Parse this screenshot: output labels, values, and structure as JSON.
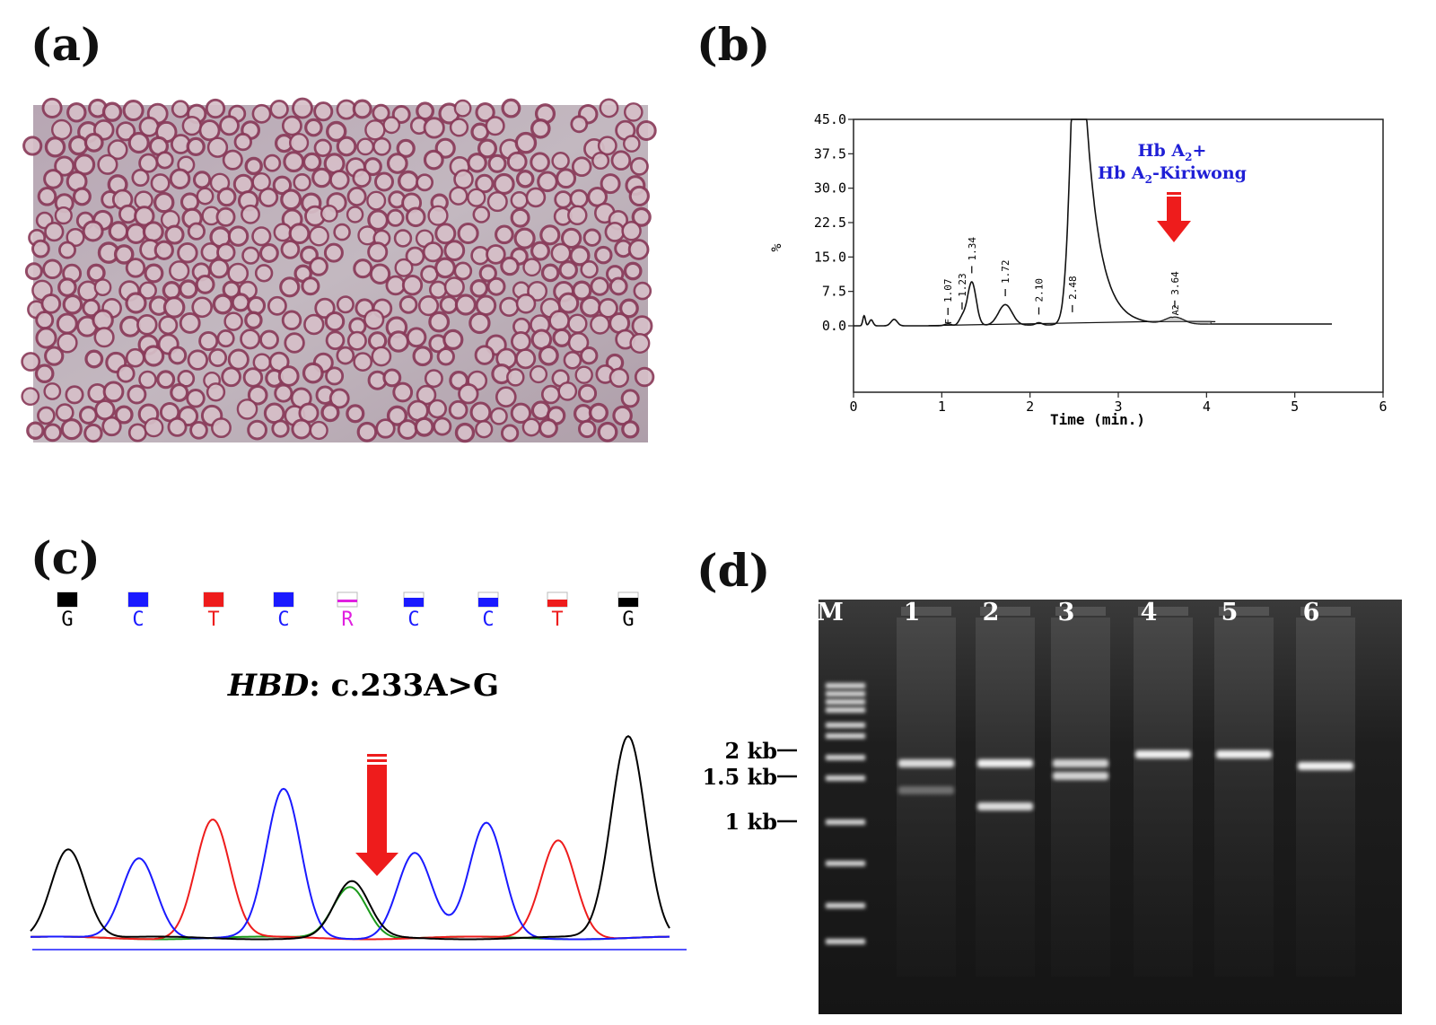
{
  "panels": {
    "a": {
      "label": "(a)"
    },
    "b": {
      "label": "(b)"
    },
    "c": {
      "label": "(c)"
    },
    "d": {
      "label": "(d)"
    }
  },
  "chromatogram": {
    "ylabel": "%",
    "xlabel": "Time (min.)",
    "yticks": [
      "45.0",
      "37.5",
      "30.0",
      "22.5",
      "15.0",
      "7.5",
      "0.0"
    ],
    "xticks": [
      "0",
      "1",
      "2",
      "3",
      "4",
      "5",
      "6"
    ],
    "peak_labels": [
      "1.07",
      "1.23",
      "1.34",
      "1.72",
      "2.10",
      "2.48",
      "3.64"
    ],
    "peak_tags": [
      "F",
      "A2"
    ],
    "annotation_line1": "Hb A",
    "annotation_line1_sub": "2",
    "annotation_line1_tail": "+",
    "annotation_line2": "Hb A",
    "annotation_line2_sub": "2",
    "annotation_line2_tail": "-Kiriwong",
    "annotation_color": "#1f1fd6",
    "arrow_color": "#ee1c1c"
  },
  "sequence": {
    "bases": [
      "G",
      "C",
      "T",
      "C",
      "R",
      "C",
      "C",
      "T",
      "G"
    ],
    "colors": {
      "G": "#000000",
      "C": "#1a1aff",
      "T": "#ee1c1c",
      "R": "#e020e0",
      "A": "#1a9a1a"
    },
    "mutation_gene": "HBD",
    "mutation_change": ": c.233A>G"
  },
  "gel": {
    "lanes": [
      "M",
      "1",
      "2",
      "3",
      "4",
      "5",
      "6"
    ],
    "size_markers": [
      "2 kb",
      "1.5 kb",
      "1 kb"
    ]
  }
}
